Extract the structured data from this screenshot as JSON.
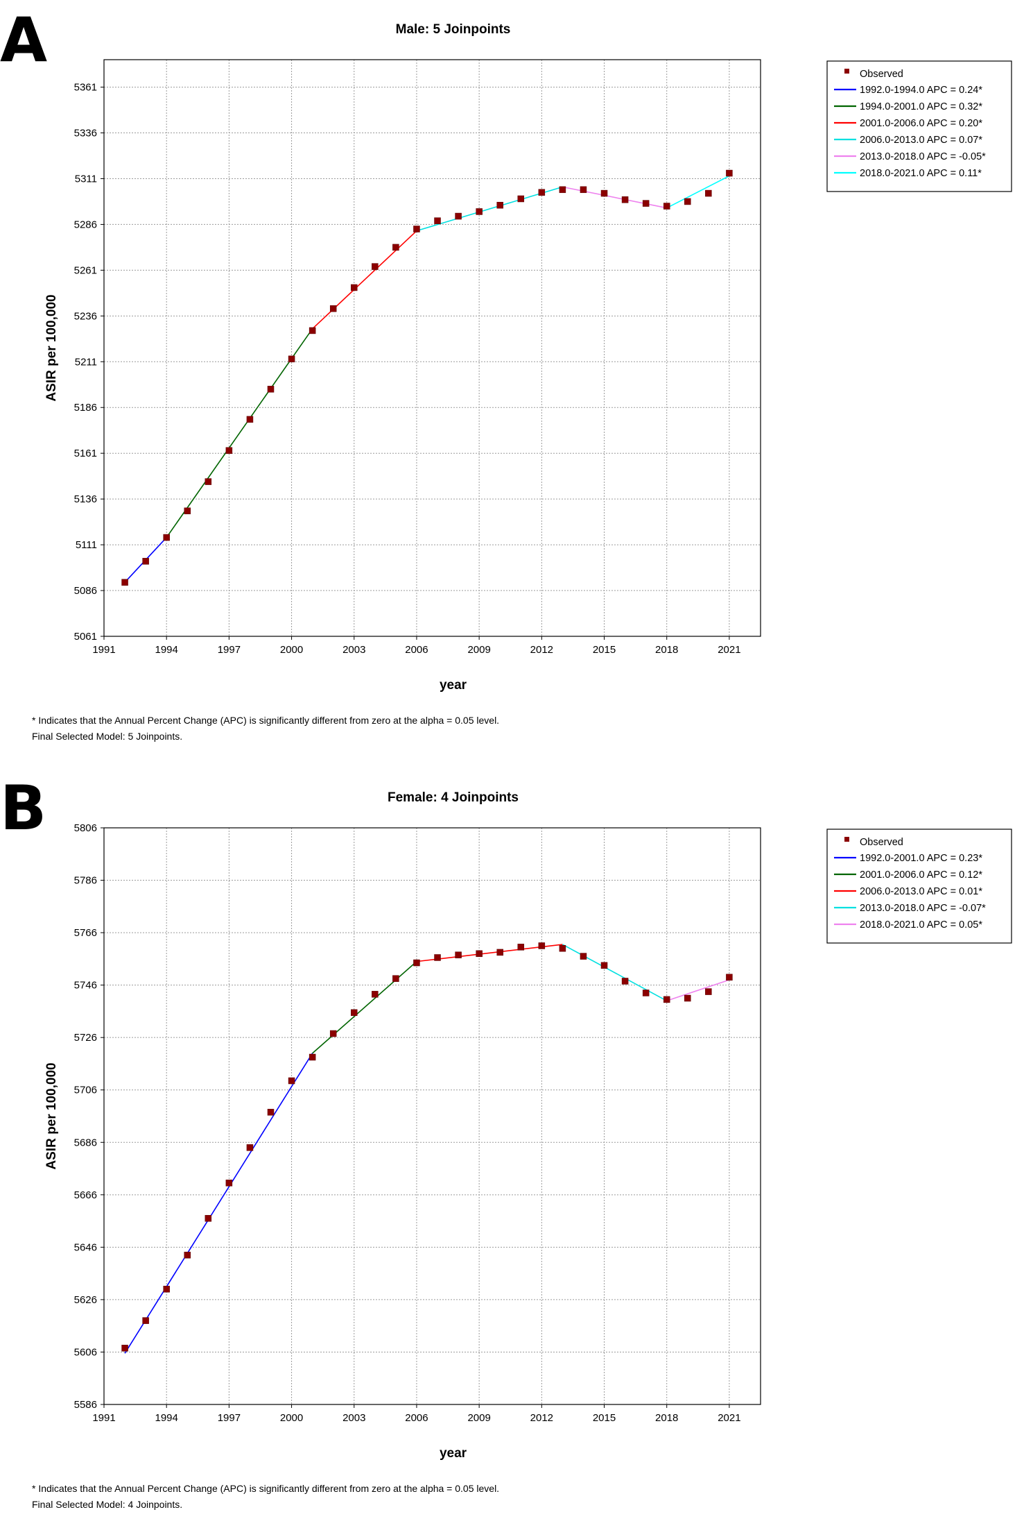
{
  "panels": [
    {
      "letter": "A",
      "footnote1": "* Indicates that the Annual Percent Change (APC) is significantly different from zero at the alpha = 0.05 level.",
      "footnote2": "Final Selected Model: 5 Joinpoints."
    },
    {
      "letter": "B",
      "footnote1": "* Indicates that the Annual Percent Change (APC) is significantly different from zero at the alpha = 0.05 level.",
      "footnote2": "Final Selected Model: 4 Joinpoints."
    }
  ],
  "chart_data": [
    {
      "type": "line",
      "title": "Male: 5 Joinpoints",
      "xlabel": "year",
      "ylabel": "ASIR per 100,000",
      "xlim": [
        1991,
        2022.5
      ],
      "ylim": [
        5061,
        5376
      ],
      "xticks": [
        1991,
        1994,
        1997,
        2000,
        2003,
        2006,
        2009,
        2012,
        2015,
        2018,
        2021
      ],
      "yticks": [
        5061,
        5086,
        5111,
        5136,
        5161,
        5186,
        5211,
        5236,
        5261,
        5286,
        5311,
        5336,
        5361
      ],
      "grid": true,
      "legend_position": "top-right, outside plot",
      "observed": {
        "name": "Observed",
        "color": "#8b0000",
        "x": [
          1992,
          1993,
          1994,
          1995,
          1996,
          1997,
          1998,
          1999,
          2000,
          2001,
          2002,
          2003,
          2004,
          2005,
          2006,
          2007,
          2008,
          2009,
          2010,
          2011,
          2012,
          2013,
          2014,
          2015,
          2016,
          2017,
          2018,
          2019,
          2020,
          2021
        ],
        "y": [
          5090.5,
          5102,
          5115,
          5129.5,
          5145.5,
          5162.5,
          5179.5,
          5196,
          5212.5,
          5228,
          5240,
          5251.5,
          5263,
          5273.5,
          5283.5,
          5288,
          5290.5,
          5293,
          5296.5,
          5300,
          5303.5,
          5305,
          5305,
          5303,
          5299.5,
          5297.5,
          5296,
          5298.5,
          5303,
          5314
        ]
      },
      "series": [
        {
          "name": "1992.0-1994.0 APC  =  0.24*",
          "color": "#0000ff",
          "x": [
            1992,
            1994
          ],
          "y": [
            5090.5,
            5115
          ]
        },
        {
          "name": "1994.0-2001.0 APC  =  0.32*",
          "color": "#006400",
          "x": [
            1994,
            2001
          ],
          "y": [
            5115,
            5229
          ]
        },
        {
          "name": "2001.0-2006.0 APC  =  0.20*",
          "color": "#ff0000",
          "x": [
            2001,
            2006
          ],
          "y": [
            5229,
            5282.5
          ]
        },
        {
          "name": "2006.0-2013.0 APC  =  0.07*",
          "color": "#00e0e0",
          "x": [
            2006,
            2013
          ],
          "y": [
            5282.5,
            5306.5
          ]
        },
        {
          "name": "2013.0-2018.0 APC  =  -0.05*",
          "color": "#ee82ee",
          "x": [
            2013,
            2018
          ],
          "y": [
            5306.5,
            5295
          ]
        },
        {
          "name": "2018.0-2021.0 APC  =  0.11*",
          "color": "#00ffff",
          "x": [
            2018,
            2021
          ],
          "y": [
            5295,
            5312.5
          ]
        }
      ]
    },
    {
      "type": "line",
      "title": "Female: 4 Joinpoints",
      "xlabel": "year",
      "ylabel": "ASIR per 100,000",
      "xlim": [
        1991,
        2022.5
      ],
      "ylim": [
        5586,
        5806
      ],
      "xticks": [
        1991,
        1994,
        1997,
        2000,
        2003,
        2006,
        2009,
        2012,
        2015,
        2018,
        2021
      ],
      "yticks": [
        5586,
        5606,
        5626,
        5646,
        5666,
        5686,
        5706,
        5726,
        5746,
        5766,
        5786,
        5806
      ],
      "grid": true,
      "legend_position": "top-right, outside plot",
      "observed": {
        "name": "Observed",
        "color": "#8b0000",
        "x": [
          1992,
          1993,
          1994,
          1995,
          1996,
          1997,
          1998,
          1999,
          2000,
          2001,
          2002,
          2003,
          2004,
          2005,
          2006,
          2007,
          2008,
          2009,
          2010,
          2011,
          2012,
          2013,
          2014,
          2015,
          2016,
          2017,
          2018,
          2019,
          2020,
          2021
        ],
        "y": [
          5607.5,
          5618,
          5630,
          5643,
          5657,
          5670.5,
          5684,
          5697.5,
          5709.5,
          5718.5,
          5727.5,
          5735.5,
          5742.5,
          5748.5,
          5754.5,
          5756.5,
          5757.5,
          5758,
          5758.5,
          5760.5,
          5761,
          5760,
          5757,
          5753.5,
          5747.5,
          5743,
          5740.5,
          5741,
          5743.5,
          5749
        ]
      },
      "series": [
        {
          "name": "1992.0-2001.0 APC  =  0.23*",
          "color": "#0000ff",
          "x": [
            1992,
            2001
          ],
          "y": [
            5605.5,
            5720
          ]
        },
        {
          "name": "2001.0-2006.0 APC  =  0.12*",
          "color": "#006400",
          "x": [
            2001,
            2006
          ],
          "y": [
            5720,
            5755
          ]
        },
        {
          "name": "2006.0-2013.0 APC  =  0.01*",
          "color": "#ff0000",
          "x": [
            2006,
            2013
          ],
          "y": [
            5755,
            5761.5
          ]
        },
        {
          "name": "2013.0-2018.0 APC  =  -0.07*",
          "color": "#00e0e0",
          "x": [
            2013,
            2018
          ],
          "y": [
            5761.5,
            5740
          ]
        },
        {
          "name": "2018.0-2021.0 APC  =  0.05*",
          "color": "#ee82ee",
          "x": [
            2018,
            2021
          ],
          "y": [
            5740,
            5748
          ]
        }
      ]
    }
  ]
}
